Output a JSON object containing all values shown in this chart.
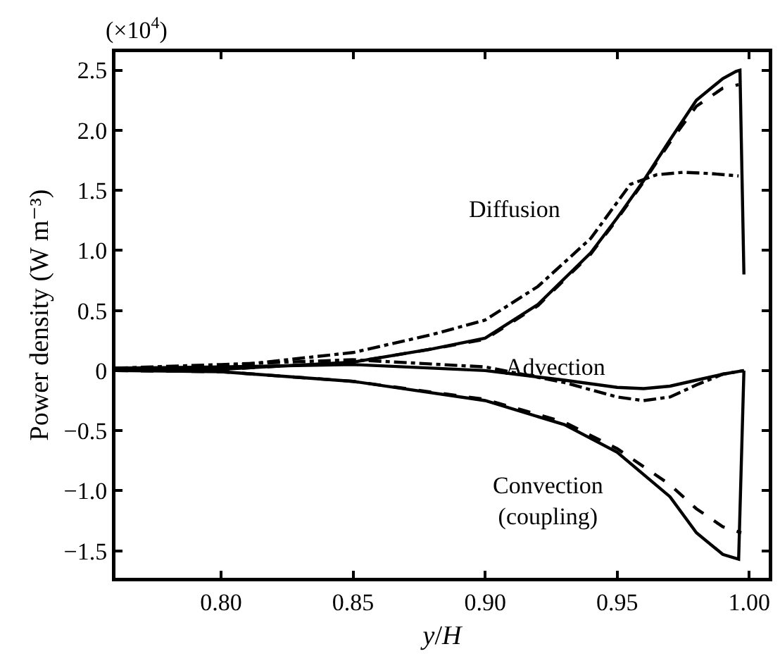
{
  "chart_data": {
    "type": "line",
    "xlabel": "y/H",
    "ylabel": "Power density (W m⁻³)",
    "xlim": [
      0.76,
      1.0074
    ],
    "ylim": [
      -1.725,
      2.65
    ],
    "xticks": [
      {
        "value": 0.8,
        "label": "0.80"
      },
      {
        "value": 0.85,
        "label": "0.85"
      },
      {
        "value": 0.9,
        "label": "0.90"
      },
      {
        "value": 0.95,
        "label": "0.95"
      },
      {
        "value": 1.0,
        "label": "1.00"
      }
    ],
    "yticks": [
      {
        "value": -1.5,
        "label": "−1.5"
      },
      {
        "value": -1,
        "label": "−1.0"
      },
      {
        "value": -0.5,
        "label": "−0.5"
      },
      0,
      0.5,
      {
        "value": 1,
        "label": "1.0"
      },
      1.5,
      {
        "value": 2,
        "label": "2.0"
      },
      2.5
    ],
    "grid": false,
    "marker": "none",
    "annotations": [
      "(×10$^{4}$)",
      "Diffusion",
      "Advection",
      "Convection\n(coupling)"
    ],
    "series": [
      {
        "color": "#000000",
        "line_style": "solid",
        "x": [
          0.76,
          0.8,
          0.85,
          0.88,
          0.9,
          0.92,
          0.94,
          0.95,
          0.96,
          0.97,
          0.98,
          0.99,
          0.995,
          0.9965,
          0.998
        ],
        "values": [
          0,
          0.01,
          0.07,
          0.18,
          0.27,
          0.55,
          0.98,
          1.27,
          1.58,
          1.92,
          2.25,
          2.43,
          2.49,
          2.5,
          0.8
        ]
      },
      {
        "color": "#000000",
        "line_style": "dashed",
        "x": [
          0.76,
          0.8,
          0.85,
          0.88,
          0.9,
          0.92,
          0.94,
          0.95,
          0.96,
          0.97,
          0.98,
          0.99,
          0.996
        ],
        "values": [
          0,
          0.01,
          0.07,
          0.18,
          0.26,
          0.54,
          0.97,
          1.26,
          1.57,
          1.9,
          2.2,
          2.35,
          2.38
        ]
      },
      {
        "color": "#000000",
        "line_style": "dashdot",
        "x": [
          0.76,
          0.8,
          0.85,
          0.88,
          0.9,
          0.92,
          0.94,
          0.955,
          0.965,
          0.975,
          0.985,
          0.996
        ],
        "values": [
          0,
          0.03,
          0.15,
          0.3,
          0.42,
          0.7,
          1.1,
          1.55,
          1.63,
          1.65,
          1.64,
          1.62
        ]
      },
      {
        "color": "#000000",
        "line_style": "solid",
        "x": [
          0.76,
          0.8,
          0.85,
          0.9,
          0.93,
          0.95,
          0.96,
          0.97,
          0.98,
          0.99,
          0.998
        ],
        "values": [
          0.02,
          0.03,
          0.05,
          0,
          -0.08,
          -0.14,
          -0.15,
          -0.13,
          -0.08,
          -0.03,
          0
        ]
      },
      {
        "color": "#000000",
        "line_style": "dashdot",
        "x": [
          0.76,
          0.8,
          0.85,
          0.9,
          0.93,
          0.95,
          0.96,
          0.97,
          0.98,
          0.99,
          0.998
        ],
        "values": [
          0.02,
          0.05,
          0.09,
          0.03,
          -0.1,
          -0.22,
          -0.25,
          -0.22,
          -0.12,
          -0.03,
          0
        ]
      },
      {
        "color": "#000000",
        "line_style": "solid",
        "x": [
          0.76,
          0.8,
          0.85,
          0.9,
          0.93,
          0.95,
          0.97,
          0.98,
          0.99,
          0.996,
          0.998
        ],
        "values": [
          0,
          -0.01,
          -0.09,
          -0.25,
          -0.45,
          -0.68,
          -1.05,
          -1.35,
          -1.53,
          -1.57,
          0
        ]
      },
      {
        "color": "#000000",
        "line_style": "dashed",
        "x": [
          0.76,
          0.8,
          0.85,
          0.9,
          0.93,
          0.95,
          0.97,
          0.98,
          0.99,
          0.997
        ],
        "values": [
          0,
          -0.01,
          -0.09,
          -0.24,
          -0.43,
          -0.65,
          -0.95,
          -1.15,
          -1.3,
          -1.35
        ]
      }
    ]
  }
}
